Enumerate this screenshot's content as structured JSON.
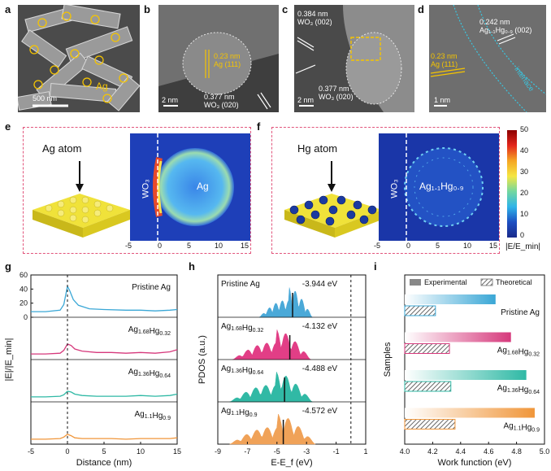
{
  "panels": {
    "a": {
      "letter": "a",
      "label": "Ag",
      "scale": "500 nm"
    },
    "b": {
      "letter": "b",
      "l1": "0.23 nm",
      "l2": "Ag (111)",
      "l3": "0.377 nm",
      "l4": "WO₃ (020)",
      "scale": "2 nm"
    },
    "c": {
      "letter": "c",
      "l1": "0.384 nm",
      "l2": "WO₃ (002)",
      "l3": "0.377 nm",
      "l4": "WO₃ (020)",
      "scale": "2 nm"
    },
    "d": {
      "letter": "d",
      "l1": "0.242 nm",
      "l2": "Ag₁.₁Hg₀.₉ (002)",
      "l3": "0.23 nm",
      "l4": "Ag (111)",
      "l5": "interface",
      "scale": "1 nm"
    },
    "e": {
      "letter": "e",
      "atom": "Ag atom",
      "side": "WO₃",
      "center": "Ag"
    },
    "f": {
      "letter": "f",
      "atom": "Hg atom",
      "side": "WO₃",
      "center": "Ag₁.₁Hg₀.₉"
    },
    "g": {
      "letter": "g"
    },
    "h": {
      "letter": "h"
    },
    "i": {
      "letter": "i"
    }
  },
  "colorbar": {
    "ticks": [
      "50",
      "40",
      "30",
      "20",
      "10",
      "0"
    ],
    "label": "|E/E_min|"
  },
  "field_axis": {
    "ticks": [
      "-5",
      "0",
      "5",
      "10",
      "15"
    ]
  },
  "chart_data": [
    {
      "id": "g",
      "type": "line",
      "xlabel": "Distance (nm)",
      "ylabel": "|E|/|E_min|",
      "x_ticks": [
        "-5",
        "0",
        "5",
        "10",
        "15"
      ],
      "xlim": [
        -5,
        15
      ],
      "y_ticks": [
        "0",
        "20",
        "40",
        "60"
      ],
      "ylim": [
        0,
        60
      ],
      "series": [
        {
          "name": "Pristine Ag",
          "color": "#3aa7d6",
          "x": [
            -5,
            -3,
            -1,
            -0.5,
            0,
            0.3,
            0.8,
            1.5,
            3,
            5,
            8,
            10,
            12,
            14,
            15
          ],
          "y": [
            8,
            8,
            10,
            18,
            44,
            38,
            25,
            17,
            12,
            11,
            10,
            10,
            9,
            10,
            11
          ]
        },
        {
          "name": "Ag1.68Hg0.32",
          "color": "#d6397c",
          "x": [
            -5,
            -3,
            -1,
            -0.5,
            0,
            0.5,
            1,
            2,
            4,
            6,
            8,
            10,
            12,
            14,
            15
          ],
          "y": [
            8,
            8,
            9,
            13,
            22,
            20,
            15,
            12,
            10,
            10,
            9,
            10,
            9,
            11,
            14
          ]
        },
        {
          "name": "Ag1.36Hg0.64",
          "color": "#2fb9a5",
          "x": [
            -5,
            -3,
            -1,
            -0.5,
            0,
            0.5,
            1,
            2,
            4,
            6,
            8,
            10,
            12,
            14,
            15
          ],
          "y": [
            7,
            7,
            8,
            10,
            15,
            14,
            11,
            9,
            8,
            8,
            8,
            9,
            8,
            9,
            11
          ]
        },
        {
          "name": "Ag1.1Hg0.9",
          "color": "#f0963a",
          "x": [
            -5,
            -3,
            -1,
            -0.5,
            0,
            0.5,
            1,
            2,
            4,
            6,
            8,
            10,
            12,
            14,
            15
          ],
          "y": [
            7,
            7,
            8,
            10,
            14,
            12,
            9,
            8,
            8,
            8,
            7,
            8,
            8,
            8,
            9
          ]
        }
      ]
    },
    {
      "id": "h",
      "type": "area",
      "xlabel": "E-E_f (eV)",
      "ylabel": "PDOS (a.u.)",
      "x_ticks": [
        "-9",
        "-7",
        "-5",
        "-3",
        "-1",
        "1"
      ],
      "xlim": [
        -9,
        1
      ],
      "series": [
        {
          "name": "Pristine Ag",
          "center": "-3.944 eV",
          "center_value": -3.944,
          "color": "#4aa9d8",
          "band": [
            -6.2,
            -2.6
          ]
        },
        {
          "name": "Ag1.68Hg0.32",
          "center": "-4.132 eV",
          "center_value": -4.132,
          "color": "#e23e86",
          "band": [
            -8.0,
            -2.7
          ]
        },
        {
          "name": "Ag1.36Hg0.64",
          "center": "-4.488 eV",
          "center_value": -4.488,
          "color": "#31b9a5",
          "band": [
            -8.2,
            -2.6
          ]
        },
        {
          "name": "Ag1.1Hg0.9",
          "center": "-4.572 eV",
          "center_value": -4.572,
          "color": "#f0a258",
          "band": [
            -8.2,
            -2.4
          ]
        }
      ]
    },
    {
      "id": "i",
      "type": "bar",
      "xlabel": "Work function (eV)",
      "ylabel": "Samples",
      "x_ticks": [
        "4.0",
        "4.2",
        "4.4",
        "4.6",
        "4.8",
        "5.0"
      ],
      "xlim": [
        4.0,
        5.0
      ],
      "legend": [
        "Experimental",
        "Theoretical"
      ],
      "categories": [
        "Pristine Ag",
        "Ag1.68Hg0.32",
        "Ag1.36Hg0.64",
        "Ag1.1Hg0.9"
      ],
      "series": [
        {
          "name": "Experimental",
          "values": [
            4.65,
            4.76,
            4.87,
            4.93
          ]
        },
        {
          "name": "Theoretical",
          "values": [
            4.22,
            4.32,
            4.33,
            4.36
          ]
        }
      ],
      "colors": [
        "#3aa7d6",
        "#d6397c",
        "#2fb9a5",
        "#f0963a"
      ]
    }
  ]
}
